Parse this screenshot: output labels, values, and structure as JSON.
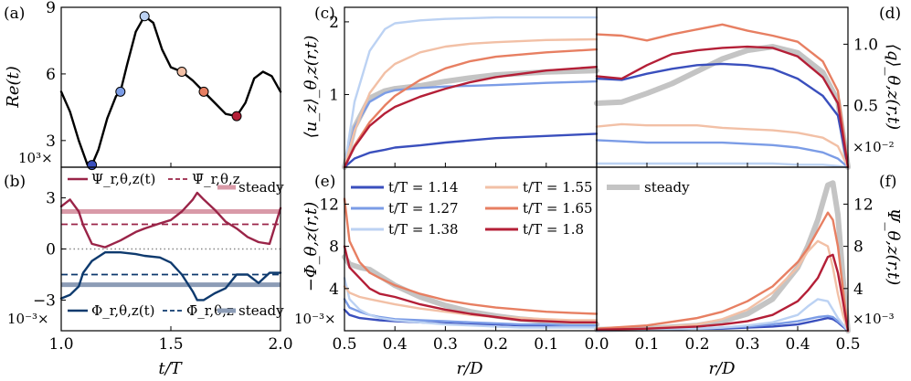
{
  "colors": {
    "t114": "#3a4fbd",
    "t127": "#7b9ce6",
    "t138": "#bcd2f3",
    "t155": "#f2c0a6",
    "t165": "#e77f62",
    "t180": "#b41f37",
    "steady": "#c4c4c4",
    "psi": "#9a2448",
    "psi_steady": "#d99aa8",
    "phi": "#0e3a6e",
    "phi_steady": "#8c9cb6"
  },
  "panel_labels": {
    "a": "(a)",
    "b": "(b)",
    "c": "(c)",
    "d": "(d)",
    "e": "(e)",
    "f": "(f)"
  },
  "axis_labels": {
    "a_y": "Re(t)",
    "b_x": "t/T",
    "c_y": "⟨u_z⟩_θ,z(r,t)",
    "d_y": "⟨q⟩_θ,z(r,t)",
    "e_y": "−Φ_θ,z(r,t)",
    "f_y": "Ψ_θ,z(r,t)",
    "ef_x": "r/D"
  },
  "multipliers": {
    "a": "10³×",
    "b": "10⁻³×",
    "d": "×10⁻²",
    "e": "10⁻³×",
    "f": "×10⁻³"
  },
  "ticks": {
    "a_y": [
      "3",
      "6",
      "9"
    ],
    "b_y": [
      "−3",
      "0",
      "3"
    ],
    "b_x": [
      "1.0",
      "1.5",
      "2.0"
    ],
    "c_y": [
      "1",
      "2"
    ],
    "d_y": [
      "0.5",
      "1.0"
    ],
    "e_y": [
      "4",
      "8",
      "12"
    ],
    "f_y": [
      "4",
      "8",
      "12"
    ],
    "e_x": [
      "0.5",
      "0.4",
      "0.3",
      "0.2",
      "0.1",
      "0.0"
    ],
    "f_x": [
      "0.1",
      "0.2",
      "0.3",
      "0.4",
      "0.5"
    ]
  },
  "legend_b": {
    "psi": "Ψ_r,θ,z(t)",
    "psi_bar": "Ψ̄_r,θ,z",
    "phi": "Φ_r,θ,z(t)",
    "phi_bar": "Φ̄_r,θ,z",
    "steady": "steady"
  },
  "legend_main": [
    {
      "key": "t114",
      "label": "t/T = 1.14"
    },
    {
      "key": "t127",
      "label": "t/T = 1.27"
    },
    {
      "key": "t138",
      "label": "t/T = 1.38"
    },
    {
      "key": "t155",
      "label": "t/T = 1.55"
    },
    {
      "key": "t165",
      "label": "t/T = 1.65"
    },
    {
      "key": "t180",
      "label": "t/T = 1.8"
    },
    {
      "key": "steady",
      "label": "steady"
    }
  ],
  "chart_data": [
    {
      "panel": "a",
      "type": "line",
      "xlabel": "",
      "ylabel": "Re(t)",
      "xlim": [
        1.0,
        2.0
      ],
      "ylim": [
        1.8,
        9.0
      ],
      "x": [
        1.0,
        1.04,
        1.08,
        1.12,
        1.14,
        1.17,
        1.21,
        1.25,
        1.27,
        1.3,
        1.34,
        1.38,
        1.42,
        1.46,
        1.5,
        1.55,
        1.6,
        1.65,
        1.7,
        1.75,
        1.8,
        1.84,
        1.88,
        1.92,
        1.96,
        2.0
      ],
      "series": [
        {
          "values": [
            5.2,
            4.3,
            3.0,
            1.9,
            1.9,
            2.6,
            4.0,
            5.0,
            5.2,
            6.4,
            7.9,
            8.6,
            8.3,
            7.1,
            6.3,
            6.1,
            5.7,
            5.2,
            4.7,
            4.2,
            4.1,
            4.7,
            5.8,
            6.1,
            5.9,
            5.2
          ]
        }
      ],
      "markers": [
        {
          "x": 1.14,
          "y": 1.9,
          "key": "t114"
        },
        {
          "x": 1.27,
          "y": 5.2,
          "key": "t127"
        },
        {
          "x": 1.38,
          "y": 8.6,
          "key": "t138"
        },
        {
          "x": 1.55,
          "y": 6.1,
          "key": "t155"
        },
        {
          "x": 1.65,
          "y": 5.2,
          "key": "t165"
        },
        {
          "x": 1.8,
          "y": 4.1,
          "key": "t180"
        }
      ]
    },
    {
      "panel": "b",
      "type": "line",
      "xlabel": "t/T",
      "xlim": [
        1.0,
        2.0
      ],
      "ylim": [
        -4.8,
        4.8
      ],
      "x": [
        1.0,
        1.04,
        1.08,
        1.1,
        1.14,
        1.2,
        1.27,
        1.34,
        1.38,
        1.45,
        1.5,
        1.55,
        1.6,
        1.62,
        1.65,
        1.7,
        1.75,
        1.8,
        1.85,
        1.9,
        1.95,
        2.0
      ],
      "series": [
        {
          "name": "Ψ_r,θ,z(t)",
          "key": "psi",
          "values": [
            2.5,
            2.9,
            2.2,
            1.4,
            0.3,
            0.1,
            0.5,
            1.0,
            1.2,
            1.5,
            1.7,
            2.2,
            2.9,
            3.3,
            2.9,
            2.3,
            1.6,
            1.2,
            0.7,
            0.4,
            0.3,
            2.4
          ]
        },
        {
          "name": "Φ_r,θ,z(t)",
          "key": "phi",
          "values": [
            -2.9,
            -2.7,
            -2.2,
            -1.4,
            -0.7,
            -0.2,
            -0.2,
            -0.3,
            -0.4,
            -0.5,
            -0.8,
            -1.5,
            -2.5,
            -3.0,
            -3.0,
            -2.6,
            -2.3,
            -1.5,
            -1.5,
            -2.0,
            -1.4,
            -1.4
          ]
        }
      ],
      "hlines": [
        {
          "name": "Ψ̄_r,θ,z",
          "key": "psi",
          "y": 1.45,
          "dashed": true
        },
        {
          "name": "steady",
          "key": "psi_steady",
          "y": 2.2,
          "thick": true
        },
        {
          "name": "Φ̄_r,θ,z",
          "key": "phi",
          "y": -1.5,
          "dashed": true
        },
        {
          "name": "steady",
          "key": "phi_steady",
          "y": -2.1,
          "thick": true
        },
        {
          "key": "zero",
          "y": 0.0,
          "dotted": true
        }
      ]
    },
    {
      "panel": "c",
      "type": "line",
      "ylabel": "⟨u_z⟩_θ,z(r,t)",
      "xlim": [
        0.5,
        0.0
      ],
      "ylim": [
        0.0,
        2.2
      ],
      "x": [
        0.5,
        0.48,
        0.45,
        0.42,
        0.4,
        0.35,
        0.3,
        0.25,
        0.2,
        0.1,
        0.0
      ],
      "series": [
        {
          "key": "t114",
          "values": [
            0.0,
            0.12,
            0.2,
            0.24,
            0.27,
            0.3,
            0.34,
            0.37,
            0.4,
            0.43,
            0.46
          ]
        },
        {
          "key": "t127",
          "values": [
            0.0,
            0.55,
            0.9,
            1.02,
            1.06,
            1.09,
            1.11,
            1.12,
            1.13,
            1.16,
            1.18
          ]
        },
        {
          "key": "t138",
          "values": [
            0.0,
            0.9,
            1.6,
            1.9,
            1.98,
            2.02,
            2.04,
            2.05,
            2.06,
            2.06,
            2.06
          ]
        },
        {
          "key": "t155",
          "values": [
            0.0,
            0.5,
            1.02,
            1.3,
            1.42,
            1.58,
            1.66,
            1.7,
            1.72,
            1.75,
            1.76
          ]
        },
        {
          "key": "t165",
          "values": [
            0.0,
            0.3,
            0.62,
            0.85,
            0.98,
            1.2,
            1.36,
            1.46,
            1.52,
            1.58,
            1.62
          ]
        },
        {
          "key": "t180",
          "values": [
            0.0,
            0.28,
            0.57,
            0.74,
            0.83,
            0.97,
            1.08,
            1.17,
            1.24,
            1.33,
            1.38
          ]
        },
        {
          "key": "steady",
          "values": [
            0.0,
            0.55,
            0.95,
            1.05,
            1.08,
            1.12,
            1.18,
            1.23,
            1.27,
            1.31,
            1.33
          ]
        }
      ]
    },
    {
      "panel": "d",
      "type": "line",
      "ylabel": "⟨q⟩_θ,z(r,t)",
      "xlim": [
        0.0,
        0.5
      ],
      "ylim": [
        0.0,
        1.3
      ],
      "x": [
        0.0,
        0.05,
        0.1,
        0.15,
        0.2,
        0.25,
        0.3,
        0.35,
        0.4,
        0.45,
        0.48,
        0.5
      ],
      "series": [
        {
          "key": "t114",
          "values": [
            0.72,
            0.71,
            0.76,
            0.8,
            0.83,
            0.84,
            0.83,
            0.8,
            0.72,
            0.58,
            0.42,
            0.0
          ]
        },
        {
          "key": "t127",
          "values": [
            0.22,
            0.21,
            0.2,
            0.2,
            0.2,
            0.2,
            0.19,
            0.18,
            0.16,
            0.12,
            0.07,
            0.0
          ]
        },
        {
          "key": "t138",
          "values": [
            0.03,
            0.03,
            0.03,
            0.03,
            0.03,
            0.03,
            0.03,
            0.03,
            0.02,
            0.02,
            0.01,
            0.0
          ]
        },
        {
          "key": "t155",
          "values": [
            0.33,
            0.35,
            0.34,
            0.34,
            0.34,
            0.32,
            0.31,
            0.3,
            0.28,
            0.24,
            0.17,
            0.0
          ]
        },
        {
          "key": "t165",
          "values": [
            1.08,
            1.07,
            1.03,
            1.08,
            1.12,
            1.16,
            1.11,
            1.07,
            1.02,
            0.86,
            0.62,
            0.0
          ]
        },
        {
          "key": "t180",
          "values": [
            0.74,
            0.72,
            0.83,
            0.92,
            0.95,
            0.97,
            0.98,
            0.97,
            0.9,
            0.73,
            0.52,
            0.0
          ]
        },
        {
          "key": "steady",
          "values": [
            0.52,
            0.53,
            0.6,
            0.68,
            0.78,
            0.88,
            0.95,
            0.98,
            0.93,
            0.77,
            0.54,
            0.0
          ]
        }
      ]
    },
    {
      "panel": "e",
      "type": "line",
      "ylabel": "−Φ_θ,z(r,t)",
      "xlabel": "r/D",
      "xlim": [
        0.5,
        0.0
      ],
      "ylim": [
        0.0,
        15.5
      ],
      "x": [
        0.5,
        0.49,
        0.47,
        0.45,
        0.43,
        0.4,
        0.35,
        0.3,
        0.25,
        0.2,
        0.15,
        0.1,
        0.05,
        0.0
      ],
      "series": [
        {
          "key": "t114",
          "values": [
            2.0,
            1.5,
            1.2,
            1.1,
            1.0,
            0.9,
            0.8,
            0.7,
            0.6,
            0.6,
            0.5,
            0.5,
            0.5,
            0.5
          ]
        },
        {
          "key": "t127",
          "values": [
            3.0,
            2.2,
            1.8,
            1.5,
            1.3,
            1.1,
            1.0,
            0.9,
            0.8,
            0.7,
            0.6,
            0.6,
            0.5,
            0.5
          ]
        },
        {
          "key": "t138",
          "values": [
            5.0,
            3.0,
            2.0,
            1.5,
            1.2,
            1.0,
            0.8,
            0.6,
            0.5,
            0.4,
            0.3,
            0.3,
            0.3,
            0.3
          ]
        },
        {
          "key": "t155",
          "values": [
            4.2,
            3.6,
            3.2,
            3.0,
            2.8,
            2.5,
            2.1,
            1.8,
            1.5,
            1.3,
            1.2,
            1.1,
            1.0,
            1.0
          ]
        },
        {
          "key": "t165",
          "values": [
            12.5,
            8.5,
            6.5,
            5.5,
            5.0,
            4.3,
            3.5,
            2.9,
            2.5,
            2.2,
            2.0,
            1.8,
            1.7,
            1.6
          ]
        },
        {
          "key": "t180",
          "values": [
            8.0,
            6.0,
            5.0,
            4.0,
            3.5,
            3.2,
            2.5,
            2.0,
            1.6,
            1.3,
            1.0,
            0.9,
            0.8,
            0.8
          ]
        },
        {
          "key": "steady",
          "values": [
            7.0,
            6.3,
            6.0,
            5.8,
            5.2,
            4.3,
            3.2,
            2.4,
            1.8,
            1.4,
            1.1,
            0.9,
            0.7,
            0.6
          ]
        }
      ]
    },
    {
      "panel": "f",
      "type": "line",
      "ylabel": "Ψ_θ,z(r,t)",
      "xlabel": "r/D",
      "xlim": [
        0.0,
        0.5
      ],
      "ylim": [
        0.0,
        15.5
      ],
      "x": [
        0.0,
        0.1,
        0.2,
        0.25,
        0.3,
        0.35,
        0.4,
        0.42,
        0.44,
        0.46,
        0.47,
        0.48,
        0.49,
        0.5
      ],
      "series": [
        {
          "key": "t114",
          "values": [
            0.1,
            0.1,
            0.2,
            0.2,
            0.3,
            0.4,
            0.6,
            0.8,
            1.0,
            1.2,
            1.1,
            0.8,
            0.4,
            0.0
          ]
        },
        {
          "key": "t127",
          "values": [
            0.1,
            0.1,
            0.2,
            0.3,
            0.4,
            0.6,
            0.9,
            1.1,
            1.3,
            1.4,
            1.3,
            0.9,
            0.5,
            0.0
          ]
        },
        {
          "key": "t138",
          "values": [
            0.0,
            0.1,
            0.2,
            0.3,
            0.5,
            0.8,
            1.5,
            2.3,
            3.0,
            2.8,
            2.0,
            1.2,
            0.6,
            0.0
          ]
        },
        {
          "key": "t155",
          "values": [
            0.1,
            0.2,
            0.6,
            1.1,
            2.0,
            3.6,
            6.0,
            7.5,
            8.5,
            8.0,
            6.0,
            3.5,
            1.5,
            0.0
          ]
        },
        {
          "key": "t165",
          "values": [
            0.2,
            0.5,
            1.2,
            1.8,
            2.8,
            4.2,
            6.5,
            7.8,
            9.5,
            11.2,
            10.5,
            8.0,
            4.0,
            0.0
          ]
        },
        {
          "key": "t180",
          "values": [
            0.1,
            0.2,
            0.4,
            0.6,
            0.9,
            1.5,
            2.8,
            3.8,
            5.0,
            7.0,
            7.2,
            5.5,
            2.8,
            0.0
          ]
        },
        {
          "key": "steady",
          "values": [
            0.1,
            0.2,
            0.5,
            0.9,
            1.6,
            3.0,
            6.0,
            8.0,
            10.5,
            13.8,
            14.0,
            11.0,
            5.0,
            0.0
          ]
        }
      ]
    }
  ]
}
